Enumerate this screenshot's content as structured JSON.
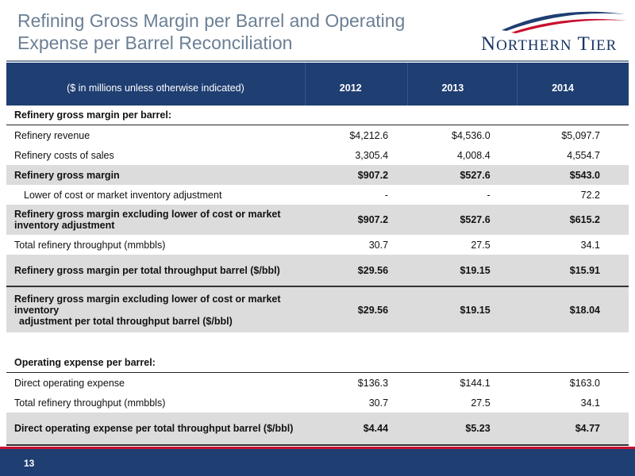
{
  "title": "Refining Gross Margin per Barrel and Operating Expense per Barrel Reconciliation",
  "logo": {
    "first": "N",
    "first_rest": "ORTHERN",
    "second": "T",
    "second_rest": "IER"
  },
  "table": {
    "header": [
      "($ in millions unless otherwise indicated)",
      "2012",
      "2013",
      "2014"
    ],
    "section1": "Refinery gross margin per barrel:",
    "r1": [
      "Refinery revenue",
      "$4,212.6",
      "$4,536.0",
      "$5,097.7"
    ],
    "r2": [
      "Refinery costs of sales",
      "3,305.4",
      "4,008.4",
      "4,554.7"
    ],
    "r3": [
      "Refinery gross margin",
      "$907.2",
      "$527.6",
      "$543.0"
    ],
    "r4": [
      "Lower of cost or market inventory adjustment",
      "-",
      "-",
      "72.2"
    ],
    "r5": [
      "Refinery gross margin excluding lower of cost or market inventory adjustment",
      "$907.2",
      "$527.6",
      "$615.2"
    ],
    "r6": [
      "Total refinery throughput (mmbbls)",
      "30.7",
      "27.5",
      "34.1"
    ],
    "r7": [
      "Refinery gross margin per total throughput barrel ($/bbl)",
      "$29.56",
      "$19.15",
      "$15.91"
    ],
    "r8a": "Refinery gross margin excluding lower of cost or market inventory",
    "r8b": "adjustment per total throughput barrel ($/bbl)",
    "r8": [
      "",
      "$29.56",
      "$19.15",
      "$18.04"
    ],
    "section2": "Operating expense per barrel:",
    "r9": [
      "Direct operating expense",
      "$136.3",
      "$144.1",
      "$163.0"
    ],
    "r10": [
      "Total refinery throughput (mmbbls)",
      "30.7",
      "27.5",
      "34.1"
    ],
    "r11": [
      "Direct operating expense per total throughput barrel ($/bbl)",
      "$4.44",
      "$5.23",
      "$4.77"
    ]
  },
  "footer": {
    "page_number": "13"
  },
  "colors": {
    "header_bg": "#1f3e72",
    "title": "#6b7f94",
    "accent_red": "#c8102e",
    "shade": "#dcdcdc"
  }
}
